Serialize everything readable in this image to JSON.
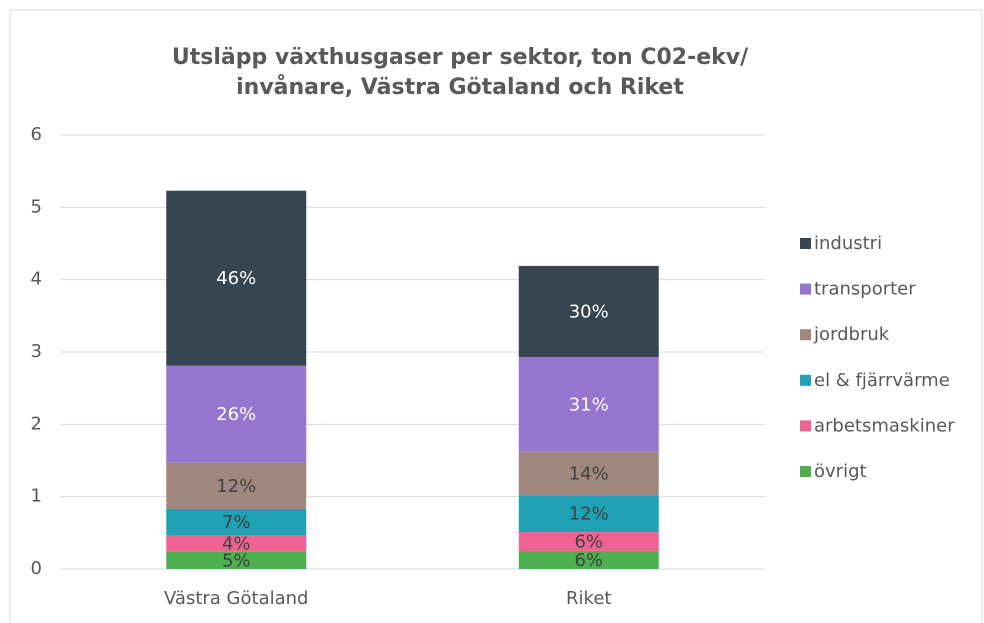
{
  "chart_data": {
    "type": "stacked_bar",
    "title": [
      "Utsläpp växthusgaser per sektor, ton C02-ekv/",
      "invånare, Västra Götaland och Riket"
    ],
    "categories": [
      "Västra Götaland",
      "Riket"
    ],
    "series": [
      {
        "name": "övrigt",
        "color": "#4caf50",
        "values": [
          0.24,
          0.25
        ],
        "value_labels": [
          "5%",
          "6%"
        ]
      },
      {
        "name": "arbetsmaskiner",
        "color": "#f06292",
        "values": [
          0.23,
          0.26
        ],
        "value_labels": [
          "4%",
          "6%"
        ]
      },
      {
        "name": "el & fjärrvärme",
        "color": "#1ea2b4",
        "values": [
          0.36,
          0.51
        ],
        "value_labels": [
          "7%",
          "12%"
        ]
      },
      {
        "name": "jordbruk",
        "color": "#a1887f",
        "values": [
          0.64,
          0.6
        ],
        "value_labels": [
          "12%",
          "14%"
        ]
      },
      {
        "name": "transporter",
        "color": "#9575cd",
        "values": [
          1.34,
          1.31
        ],
        "value_labels": [
          "26%",
          "31%"
        ]
      },
      {
        "name": "industri",
        "color": "#36454f",
        "values": [
          2.42,
          1.26
        ],
        "value_labels": [
          "46%",
          "30%"
        ]
      }
    ],
    "ylim": [
      0,
      6
    ],
    "yticks": [
      0,
      1,
      2,
      3,
      4,
      5,
      6
    ],
    "grid": true,
    "legend": "right"
  }
}
